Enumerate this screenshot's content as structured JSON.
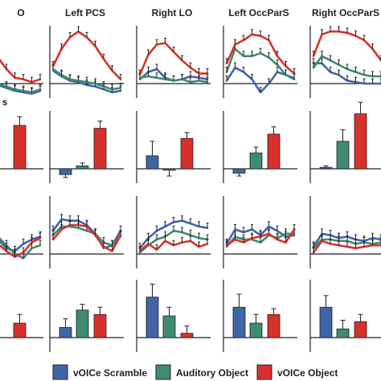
{
  "colors": {
    "scramble": "#3f65a6",
    "auditory": "#3f8a72",
    "object": "#d8312b",
    "axis": "#222222"
  },
  "legend": [
    {
      "key": "scramble",
      "label": "vOICe Scramble"
    },
    {
      "key": "auditory",
      "label": "Auditory Object"
    },
    {
      "key": "object",
      "label": "vOICe Object"
    }
  ],
  "row_labels": {
    "row2": "s"
  },
  "chart_data": [
    {
      "type": "line",
      "region": "O",
      "row": 1,
      "col": 0,
      "title": "O",
      "ylim": [
        -1,
        4
      ],
      "x": [
        1,
        2,
        3,
        4,
        5,
        6,
        7,
        8,
        9
      ],
      "series": [
        {
          "key": "scramble",
          "values": [
            0.5,
            0.2,
            0.0,
            -0.1,
            -0.3,
            -0.5,
            -0.6,
            -0.7,
            -0.5
          ]
        },
        {
          "key": "auditory",
          "values": [
            0.5,
            0.2,
            0.0,
            0.0,
            -0.2,
            -0.4,
            -0.5,
            -0.6,
            -0.4
          ]
        },
        {
          "key": "object",
          "values": [
            3.0,
            2.7,
            2.3,
            1.8,
            1.0,
            0.4,
            0.3,
            0.1,
            0.3
          ]
        }
      ]
    },
    {
      "type": "line",
      "region": "Left PCS",
      "row": 1,
      "col": 1,
      "title": "Left PCS",
      "ylim": [
        -1,
        4
      ],
      "x": [
        1,
        2,
        3,
        4,
        5,
        6,
        7,
        8,
        9
      ],
      "series": [
        {
          "key": "scramble",
          "values": [
            0.9,
            0.5,
            0.2,
            0.1,
            -0.1,
            -0.2,
            -0.4,
            -0.6,
            -0.5
          ]
        },
        {
          "key": "auditory",
          "values": [
            1.0,
            0.6,
            0.3,
            0.2,
            0.1,
            0.0,
            -0.2,
            -0.4,
            -0.3
          ]
        },
        {
          "key": "object",
          "values": [
            1.2,
            2.4,
            3.2,
            3.6,
            3.2,
            2.6,
            1.7,
            0.9,
            0.3
          ]
        }
      ]
    },
    {
      "type": "line",
      "region": "Right LO",
      "row": 1,
      "col": 2,
      "title": "Right LO",
      "ylim": [
        -1,
        4
      ],
      "x": [
        1,
        2,
        3,
        4,
        5,
        6,
        7,
        8,
        9
      ],
      "series": [
        {
          "key": "scramble",
          "values": [
            0.3,
            0.8,
            1.0,
            0.4,
            0.2,
            0.3,
            0.5,
            0.4,
            0.3
          ]
        },
        {
          "key": "auditory",
          "values": [
            0.4,
            0.5,
            0.4,
            0.3,
            0.2,
            0.3,
            0.1,
            0.2,
            0.1
          ]
        },
        {
          "key": "object",
          "values": [
            0.6,
            2.0,
            2.7,
            2.8,
            2.2,
            1.6,
            1.1,
            0.7,
            0.7
          ]
        }
      ]
    },
    {
      "type": "line",
      "region": "Left OccParS",
      "row": 1,
      "col": 3,
      "title": "Left OccParS",
      "ylim": [
        -1,
        4
      ],
      "x": [
        1,
        2,
        3,
        4,
        5,
        6,
        7,
        8,
        9
      ],
      "series": [
        {
          "key": "scramble",
          "values": [
            0.2,
            1.1,
            0.8,
            0.3,
            -0.6,
            0.0,
            0.8,
            0.6,
            0.3
          ]
        },
        {
          "key": "auditory",
          "values": [
            0.8,
            2.4,
            1.9,
            1.9,
            2.1,
            1.8,
            1.3,
            0.6,
            0.4
          ]
        },
        {
          "key": "object",
          "values": [
            1.4,
            2.7,
            3.0,
            3.4,
            3.3,
            3.0,
            1.9,
            1.2,
            0.7
          ]
        }
      ]
    },
    {
      "type": "line",
      "region": "Right OccParS",
      "row": 1,
      "col": 4,
      "title": "Right OccParS",
      "ylim": [
        -1,
        4
      ],
      "x": [
        1,
        2,
        3,
        4,
        5,
        6,
        7,
        8,
        9
      ],
      "series": [
        {
          "key": "scramble",
          "values": [
            1.4,
            1.4,
            0.8,
            0.6,
            0.2,
            0.1,
            0.0,
            0.0,
            0.0
          ]
        },
        {
          "key": "auditory",
          "values": [
            1.1,
            1.9,
            1.6,
            1.3,
            1.0,
            0.8,
            0.6,
            0.5,
            0.5
          ]
        },
        {
          "key": "object",
          "values": [
            1.9,
            3.4,
            3.6,
            3.6,
            3.5,
            3.3,
            3.0,
            2.4,
            1.6
          ]
        }
      ]
    },
    {
      "type": "bar",
      "row": 2,
      "col": 0,
      "ylim": [
        -1,
        4
      ],
      "categories": [
        "scramble",
        "auditory",
        "object"
      ],
      "values": [
        0,
        0,
        3.0
      ],
      "errors": [
        0,
        0,
        0.6
      ]
    },
    {
      "type": "bar",
      "row": 2,
      "col": 1,
      "ylim": [
        -1,
        4
      ],
      "categories": [
        "scramble",
        "auditory",
        "object"
      ],
      "values": [
        -0.4,
        0.2,
        2.8
      ],
      "errors": [
        0.2,
        0.2,
        0.5
      ]
    },
    {
      "type": "bar",
      "row": 2,
      "col": 2,
      "ylim": [
        -1,
        4
      ],
      "categories": [
        "scramble",
        "auditory",
        "object"
      ],
      "values": [
        0.9,
        -0.1,
        2.1
      ],
      "errors": [
        1.0,
        0.4,
        0.4
      ]
    },
    {
      "type": "bar",
      "row": 2,
      "col": 3,
      "ylim": [
        -1,
        4
      ],
      "categories": [
        "scramble",
        "auditory",
        "object"
      ],
      "values": [
        -0.3,
        1.1,
        2.4
      ],
      "errors": [
        0.2,
        0.4,
        0.5
      ]
    },
    {
      "type": "bar",
      "row": 2,
      "col": 4,
      "ylim": [
        -1,
        4
      ],
      "categories": [
        "scramble",
        "auditory",
        "object"
      ],
      "values": [
        0.1,
        1.9,
        3.8
      ],
      "errors": [
        0.1,
        0.8,
        0.8
      ]
    },
    {
      "type": "line",
      "row": 3,
      "col": 0,
      "ylim": [
        -1,
        4
      ],
      "x": [
        1,
        2,
        3,
        4,
        5,
        6,
        7,
        8,
        9
      ],
      "series": [
        {
          "key": "scramble",
          "values": [
            2.6,
            2.0,
            1.4,
            1.0,
            0.4,
            0.2,
            0.7,
            1.0,
            1.2
          ]
        },
        {
          "key": "auditory",
          "values": [
            2.2,
            1.9,
            1.6,
            1.2,
            0.6,
            0.0,
            -0.3,
            0.4,
            0.6
          ]
        },
        {
          "key": "object",
          "values": [
            2.0,
            1.8,
            1.2,
            0.7,
            0.2,
            -0.2,
            0.1,
            0.8,
            1.1
          ]
        }
      ]
    },
    {
      "type": "line",
      "row": 3,
      "col": 1,
      "ylim": [
        -1,
        4
      ],
      "x": [
        1,
        2,
        3,
        4,
        5,
        6,
        7,
        8,
        9
      ],
      "series": [
        {
          "key": "scramble",
          "values": [
            1.6,
            2.4,
            2.3,
            2.3,
            2.0,
            1.4,
            0.4,
            0.6,
            1.6
          ]
        },
        {
          "key": "auditory",
          "values": [
            1.3,
            1.9,
            1.9,
            1.8,
            1.6,
            1.4,
            0.8,
            0.6,
            1.2
          ]
        },
        {
          "key": "object",
          "values": [
            1.0,
            1.7,
            2.0,
            2.0,
            1.9,
            1.3,
            0.5,
            0.2,
            1.3
          ]
        }
      ]
    },
    {
      "type": "line",
      "row": 3,
      "col": 2,
      "ylim": [
        -1,
        4
      ],
      "x": [
        1,
        2,
        3,
        4,
        5,
        6,
        7,
        8,
        9
      ],
      "series": [
        {
          "key": "scramble",
          "values": [
            0.4,
            1.1,
            1.6,
            1.9,
            2.2,
            2.3,
            2.1,
            1.9,
            1.8
          ]
        },
        {
          "key": "auditory",
          "values": [
            0.1,
            0.6,
            1.0,
            1.2,
            1.6,
            1.5,
            1.3,
            1.1,
            1.0
          ]
        },
        {
          "key": "object",
          "values": [
            0.2,
            0.7,
            0.3,
            0.9,
            0.6,
            0.8,
            0.9,
            0.5,
            0.7
          ]
        }
      ]
    },
    {
      "type": "line",
      "row": 3,
      "col": 3,
      "ylim": [
        -1,
        4
      ],
      "x": [
        1,
        2,
        3,
        4,
        5,
        6,
        7,
        8,
        9
      ],
      "series": [
        {
          "key": "scramble",
          "values": [
            0.7,
            1.7,
            1.5,
            1.7,
            1.3,
            1.9,
            1.6,
            1.2,
            1.3
          ]
        },
        {
          "key": "auditory",
          "values": [
            0.5,
            1.2,
            1.0,
            1.0,
            0.8,
            1.3,
            1.1,
            1.4,
            1.4
          ]
        },
        {
          "key": "object",
          "values": [
            0.6,
            1.0,
            0.8,
            1.1,
            1.2,
            1.4,
            1.0,
            0.8,
            1.7
          ]
        }
      ]
    },
    {
      "type": "line",
      "row": 3,
      "col": 4,
      "ylim": [
        -1,
        4
      ],
      "x": [
        1,
        2,
        3,
        4,
        5,
        6,
        7,
        8,
        9
      ],
      "series": [
        {
          "key": "scramble",
          "values": [
            0.5,
            1.4,
            1.3,
            1.1,
            1.2,
            1.0,
            0.9,
            1.1,
            1.0
          ]
        },
        {
          "key": "auditory",
          "values": [
            0.4,
            1.0,
            1.0,
            0.9,
            0.9,
            0.7,
            0.8,
            0.7,
            0.8
          ]
        },
        {
          "key": "object",
          "values": [
            0.1,
            0.9,
            0.7,
            0.6,
            0.5,
            0.4,
            0.5,
            0.6,
            0.6
          ]
        }
      ]
    },
    {
      "type": "bar",
      "row": 4,
      "col": 0,
      "ylim": [
        -1,
        4
      ],
      "categories": [
        "scramble",
        "auditory",
        "object"
      ],
      "values": [
        0,
        0,
        1.0
      ],
      "errors": [
        0,
        0,
        0.6
      ]
    },
    {
      "type": "bar",
      "row": 4,
      "col": 1,
      "ylim": [
        -1,
        4
      ],
      "categories": [
        "scramble",
        "auditory",
        "object"
      ],
      "values": [
        0.7,
        1.9,
        1.6
      ],
      "errors": [
        0.6,
        0.4,
        0.5
      ]
    },
    {
      "type": "bar",
      "row": 4,
      "col": 2,
      "ylim": [
        -1,
        4
      ],
      "categories": [
        "scramble",
        "auditory",
        "object"
      ],
      "values": [
        2.8,
        1.5,
        0.3
      ],
      "errors": [
        0.9,
        0.6,
        0.5
      ]
    },
    {
      "type": "bar",
      "row": 4,
      "col": 3,
      "ylim": [
        -1,
        4
      ],
      "categories": [
        "scramble",
        "auditory",
        "object"
      ],
      "values": [
        2.1,
        1.0,
        1.6
      ],
      "errors": [
        0.9,
        0.6,
        0.4
      ]
    },
    {
      "type": "bar",
      "row": 4,
      "col": 4,
      "ylim": [
        -1,
        4
      ],
      "categories": [
        "scramble",
        "auditory",
        "object"
      ],
      "values": [
        2.1,
        0.6,
        1.1
      ],
      "errors": [
        0.8,
        0.6,
        0.5
      ]
    }
  ]
}
